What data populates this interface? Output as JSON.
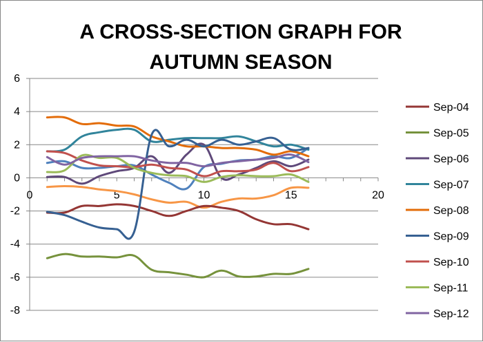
{
  "chart_data": {
    "type": "scatter",
    "title_lines": [
      "A CROSS-SECTION GRAPH FOR",
      "AUTUMN SEASON"
    ],
    "xlabel": "",
    "ylabel": "",
    "xlim": [
      0,
      20
    ],
    "ylim": [
      -8,
      6
    ],
    "xticks": [
      0,
      5,
      10,
      15,
      20
    ],
    "yticks": [
      6,
      4,
      2,
      0,
      -2,
      -4,
      -6,
      -8
    ],
    "grid": "horizontal",
    "legend_position": "right",
    "x": [
      1,
      2,
      3,
      4,
      5,
      6,
      7,
      8,
      9,
      10,
      11,
      12,
      13,
      14,
      15,
      16
    ],
    "series": [
      {
        "name": "Sep-04",
        "color": "#943634",
        "values": [
          -2.1,
          -2.1,
          -1.7,
          -1.7,
          -1.6,
          -1.7,
          -2.0,
          -2.3,
          -2.0,
          -1.7,
          -1.8,
          -2.0,
          -2.5,
          -2.8,
          -2.8,
          -3.1
        ]
      },
      {
        "name": "Sep-05",
        "color": "#76923C",
        "values": [
          -4.85,
          -4.6,
          -4.75,
          -4.75,
          -4.8,
          -4.7,
          -5.55,
          -5.7,
          -5.85,
          -6.0,
          -5.6,
          -5.95,
          -5.95,
          -5.8,
          -5.8,
          -5.5
        ]
      },
      {
        "name": "Sep-06",
        "color": "#5F497A",
        "values": [
          0.05,
          0.05,
          -0.35,
          0.1,
          0.4,
          0.6,
          1.3,
          0.3,
          1.4,
          2.0,
          0.0,
          0.2,
          0.6,
          1.0,
          0.7,
          1.1
        ]
      },
      {
        "name": "Sep-07",
        "color": "#31849B",
        "values": [
          1.6,
          1.7,
          2.5,
          2.75,
          2.9,
          2.9,
          2.2,
          2.3,
          2.4,
          2.4,
          2.4,
          2.5,
          2.2,
          1.9,
          2.0,
          1.7
        ]
      },
      {
        "name": "Sep-08",
        "color": "#E36C09",
        "values": [
          3.65,
          3.65,
          3.25,
          3.3,
          3.15,
          3.1,
          2.5,
          2.2,
          1.9,
          1.9,
          1.8,
          1.8,
          1.7,
          1.4,
          1.6,
          1.3
        ]
      },
      {
        "name": "Sep-09",
        "color": "#366092",
        "values": [
          -2.05,
          -2.25,
          -2.65,
          -3.0,
          -3.1,
          -3.25,
          2.6,
          1.9,
          2.3,
          1.9,
          2.3,
          2.0,
          2.2,
          2.4,
          1.7,
          1.8
        ]
      },
      {
        "name": "Sep-10",
        "color": "#C0504D",
        "values": [
          1.6,
          1.5,
          1.05,
          0.75,
          0.7,
          0.65,
          0.8,
          0.6,
          0.5,
          0.1,
          0.4,
          0.4,
          0.5,
          0.9,
          0.4,
          0.65
        ]
      },
      {
        "name": "Sep-11",
        "color": "#9BBB59",
        "values": [
          0.35,
          0.45,
          1.35,
          1.2,
          1.2,
          0.6,
          0.3,
          0.15,
          0.1,
          -0.25,
          0.05,
          0.15,
          0.1,
          0.1,
          0.2,
          -0.25
        ]
      },
      {
        "name": "Sep-12",
        "color": "#8064A2",
        "values": [
          1.25,
          0.8,
          1.2,
          1.3,
          1.3,
          1.3,
          1.05,
          0.9,
          0.9,
          0.7,
          0.9,
          1.0,
          1.1,
          1.2,
          1.4,
          0.95
        ]
      },
      {
        "name": "",
        "color": "#4F81BD",
        "values": [
          0.9,
          1.0,
          0.6,
          0.6,
          0.7,
          0.75,
          0.2,
          -0.3,
          -0.65,
          0.65,
          0.85,
          1.05,
          1.1,
          1.3,
          1.2,
          1.8
        ]
      },
      {
        "name": "",
        "color": "#F79646",
        "values": [
          -0.55,
          -0.5,
          -0.55,
          -0.7,
          -0.8,
          -1.0,
          -1.3,
          -1.5,
          -1.45,
          -1.8,
          -1.45,
          -1.25,
          -1.25,
          -1.05,
          -0.6,
          -0.6
        ]
      }
    ]
  }
}
